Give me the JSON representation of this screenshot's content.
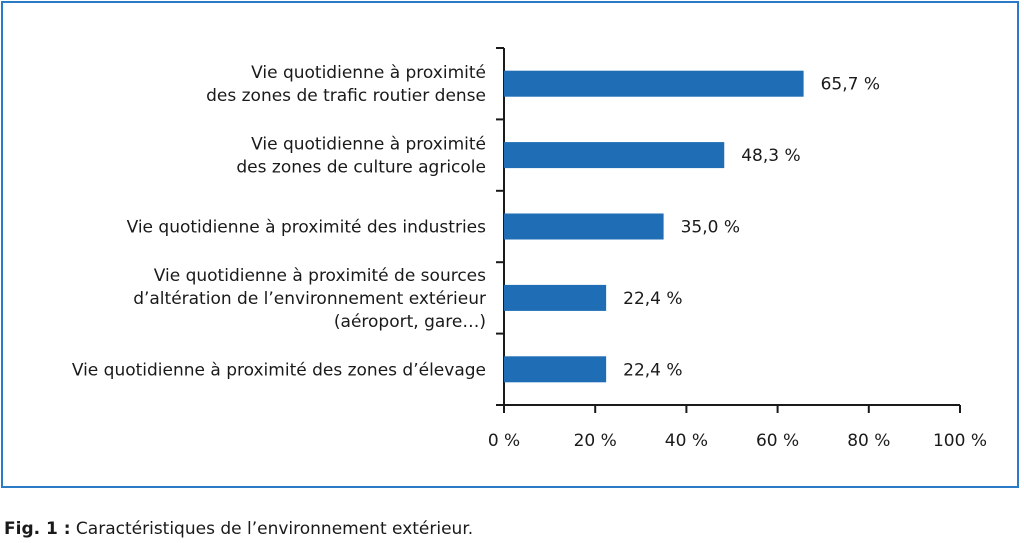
{
  "chart_data": {
    "type": "bar",
    "orientation": "horizontal",
    "categories": [
      [
        "Vie quotidienne à proximité",
        "des zones de trafic routier dense"
      ],
      [
        "Vie quotidienne à proximité",
        "des zones de culture agricole"
      ],
      [
        "Vie quotidienne à proximité des industries"
      ],
      [
        "Vie quotidienne à proximité de sources",
        "d’altération de l’environnement extérieur",
        "(aéroport, gare…)"
      ],
      [
        "Vie quotidienne à proximité des zones d’élevage"
      ]
    ],
    "values": [
      65.7,
      48.3,
      35.0,
      22.4,
      22.4
    ],
    "value_labels": [
      "65,7 %",
      "48,3 %",
      "35,0 %",
      "22,4 %",
      "22,4 %"
    ],
    "xlim": [
      0,
      100
    ],
    "xticks": [
      0,
      20,
      40,
      60,
      80,
      100
    ],
    "xtick_labels": [
      "0 %",
      "20 %",
      "40 %",
      "60 %",
      "80 %",
      "100 %"
    ],
    "grid": false,
    "bar_color": "#1f6db5",
    "frame_color": "#2a7ac6"
  },
  "caption": {
    "prefix": "Fig. 1 :",
    "text": " Caractéristiques de l’environnement extérieur."
  }
}
